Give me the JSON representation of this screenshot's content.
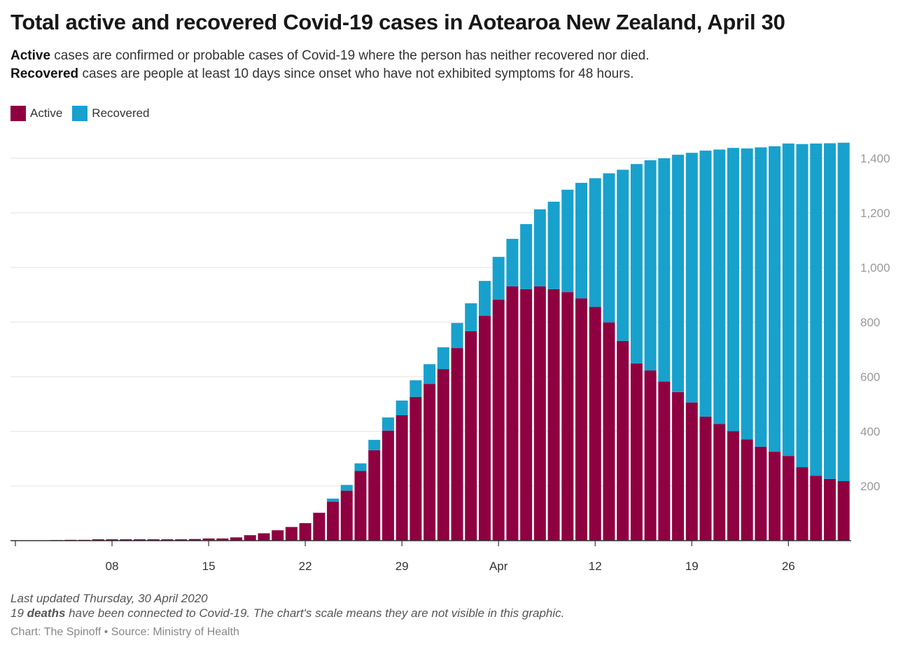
{
  "title": "Total active and recovered Covid-19 cases in Aotearoa New Zealand, April 30",
  "subtitle": {
    "line1_bold": "Active",
    "line1_rest": " cases are confirmed or probable cases of Covid-19 where the person has neither recovered nor died.",
    "line2_bold": "Recovered",
    "line2_rest": " cases are people at least 10 days since onset who have not exhibited symptoms for 48 hours."
  },
  "footer": {
    "updated": "Last updated Thursday, 30 April 2020",
    "deaths_pre": "19 ",
    "deaths_bold": "deaths",
    "deaths_post": " have been connected to Covid-19. The chart's scale means they are not visible in this graphic.",
    "source": "Chart: The Spinoff • Source: Ministry of Health"
  },
  "chart_data": {
    "type": "bar",
    "stacked": true,
    "legend_position": "top-left",
    "grid": true,
    "ylim": [
      0,
      1460
    ],
    "y_axis_side": "right",
    "y_ticks": [
      200,
      400,
      600,
      800,
      1000,
      1200,
      1400
    ],
    "y_tick_labels": [
      "200",
      "400",
      "600",
      "800",
      "1,000",
      "1,200",
      "1,400"
    ],
    "x_ticks": [
      {
        "date": "2020-03-01",
        "label": ""
      },
      {
        "date": "2020-03-08",
        "label": "08"
      },
      {
        "date": "2020-03-15",
        "label": "15"
      },
      {
        "date": "2020-03-22",
        "label": "22"
      },
      {
        "date": "2020-03-29",
        "label": "29"
      },
      {
        "date": "2020-04-05",
        "label": "Apr"
      },
      {
        "date": "2020-04-12",
        "label": "12"
      },
      {
        "date": "2020-04-19",
        "label": "19"
      },
      {
        "date": "2020-04-26",
        "label": "26"
      }
    ],
    "x": [
      "2020-03-01",
      "2020-03-02",
      "2020-03-03",
      "2020-03-04",
      "2020-03-05",
      "2020-03-06",
      "2020-03-07",
      "2020-03-08",
      "2020-03-09",
      "2020-03-10",
      "2020-03-11",
      "2020-03-12",
      "2020-03-13",
      "2020-03-14",
      "2020-03-15",
      "2020-03-16",
      "2020-03-17",
      "2020-03-18",
      "2020-03-19",
      "2020-03-20",
      "2020-03-21",
      "2020-03-22",
      "2020-03-23",
      "2020-03-24",
      "2020-03-25",
      "2020-03-26",
      "2020-03-27",
      "2020-03-28",
      "2020-03-29",
      "2020-03-30",
      "2020-03-31",
      "2020-04-01",
      "2020-04-02",
      "2020-04-03",
      "2020-04-04",
      "2020-04-05",
      "2020-04-06",
      "2020-04-07",
      "2020-04-08",
      "2020-04-09",
      "2020-04-10",
      "2020-04-11",
      "2020-04-12",
      "2020-04-13",
      "2020-04-14",
      "2020-04-15",
      "2020-04-16",
      "2020-04-17",
      "2020-04-18",
      "2020-04-19",
      "2020-04-20",
      "2020-04-21",
      "2020-04-22",
      "2020-04-23",
      "2020-04-24",
      "2020-04-25",
      "2020-04-26",
      "2020-04-27",
      "2020-04-28",
      "2020-04-29",
      "2020-04-30"
    ],
    "series": [
      {
        "name": "Active",
        "color": "#8f0040",
        "values": [
          0,
          0,
          0,
          2,
          3,
          3,
          5,
          5,
          5,
          5,
          5,
          5,
          5,
          6,
          8,
          8,
          12,
          20,
          27,
          38,
          50,
          64,
          102,
          143,
          183,
          255,
          331,
          403,
          459,
          526,
          574,
          628,
          705,
          767,
          823,
          882,
          931,
          921,
          931,
          921,
          910,
          887,
          856,
          799,
          731,
          649,
          623,
          582,
          544,
          506,
          454,
          427,
          401,
          371,
          344,
          326,
          310,
          269,
          238,
          226,
          218
        ]
      },
      {
        "name": "Recovered",
        "color": "#18a1cd",
        "values": [
          0,
          0,
          0,
          0,
          0,
          0,
          0,
          0,
          0,
          0,
          0,
          0,
          0,
          0,
          0,
          0,
          0,
          0,
          0,
          0,
          0,
          0,
          0,
          11,
          21,
          28,
          38,
          48,
          54,
          61,
          72,
          80,
          92,
          102,
          128,
          157,
          174,
          238,
          282,
          320,
          375,
          423,
          471,
          546,
          627,
          730,
          770,
          818,
          869,
          914,
          974,
          1005,
          1037,
          1065,
          1096,
          1118,
          1144,
          1183,
          1216,
          1229,
          1239
        ]
      }
    ]
  }
}
